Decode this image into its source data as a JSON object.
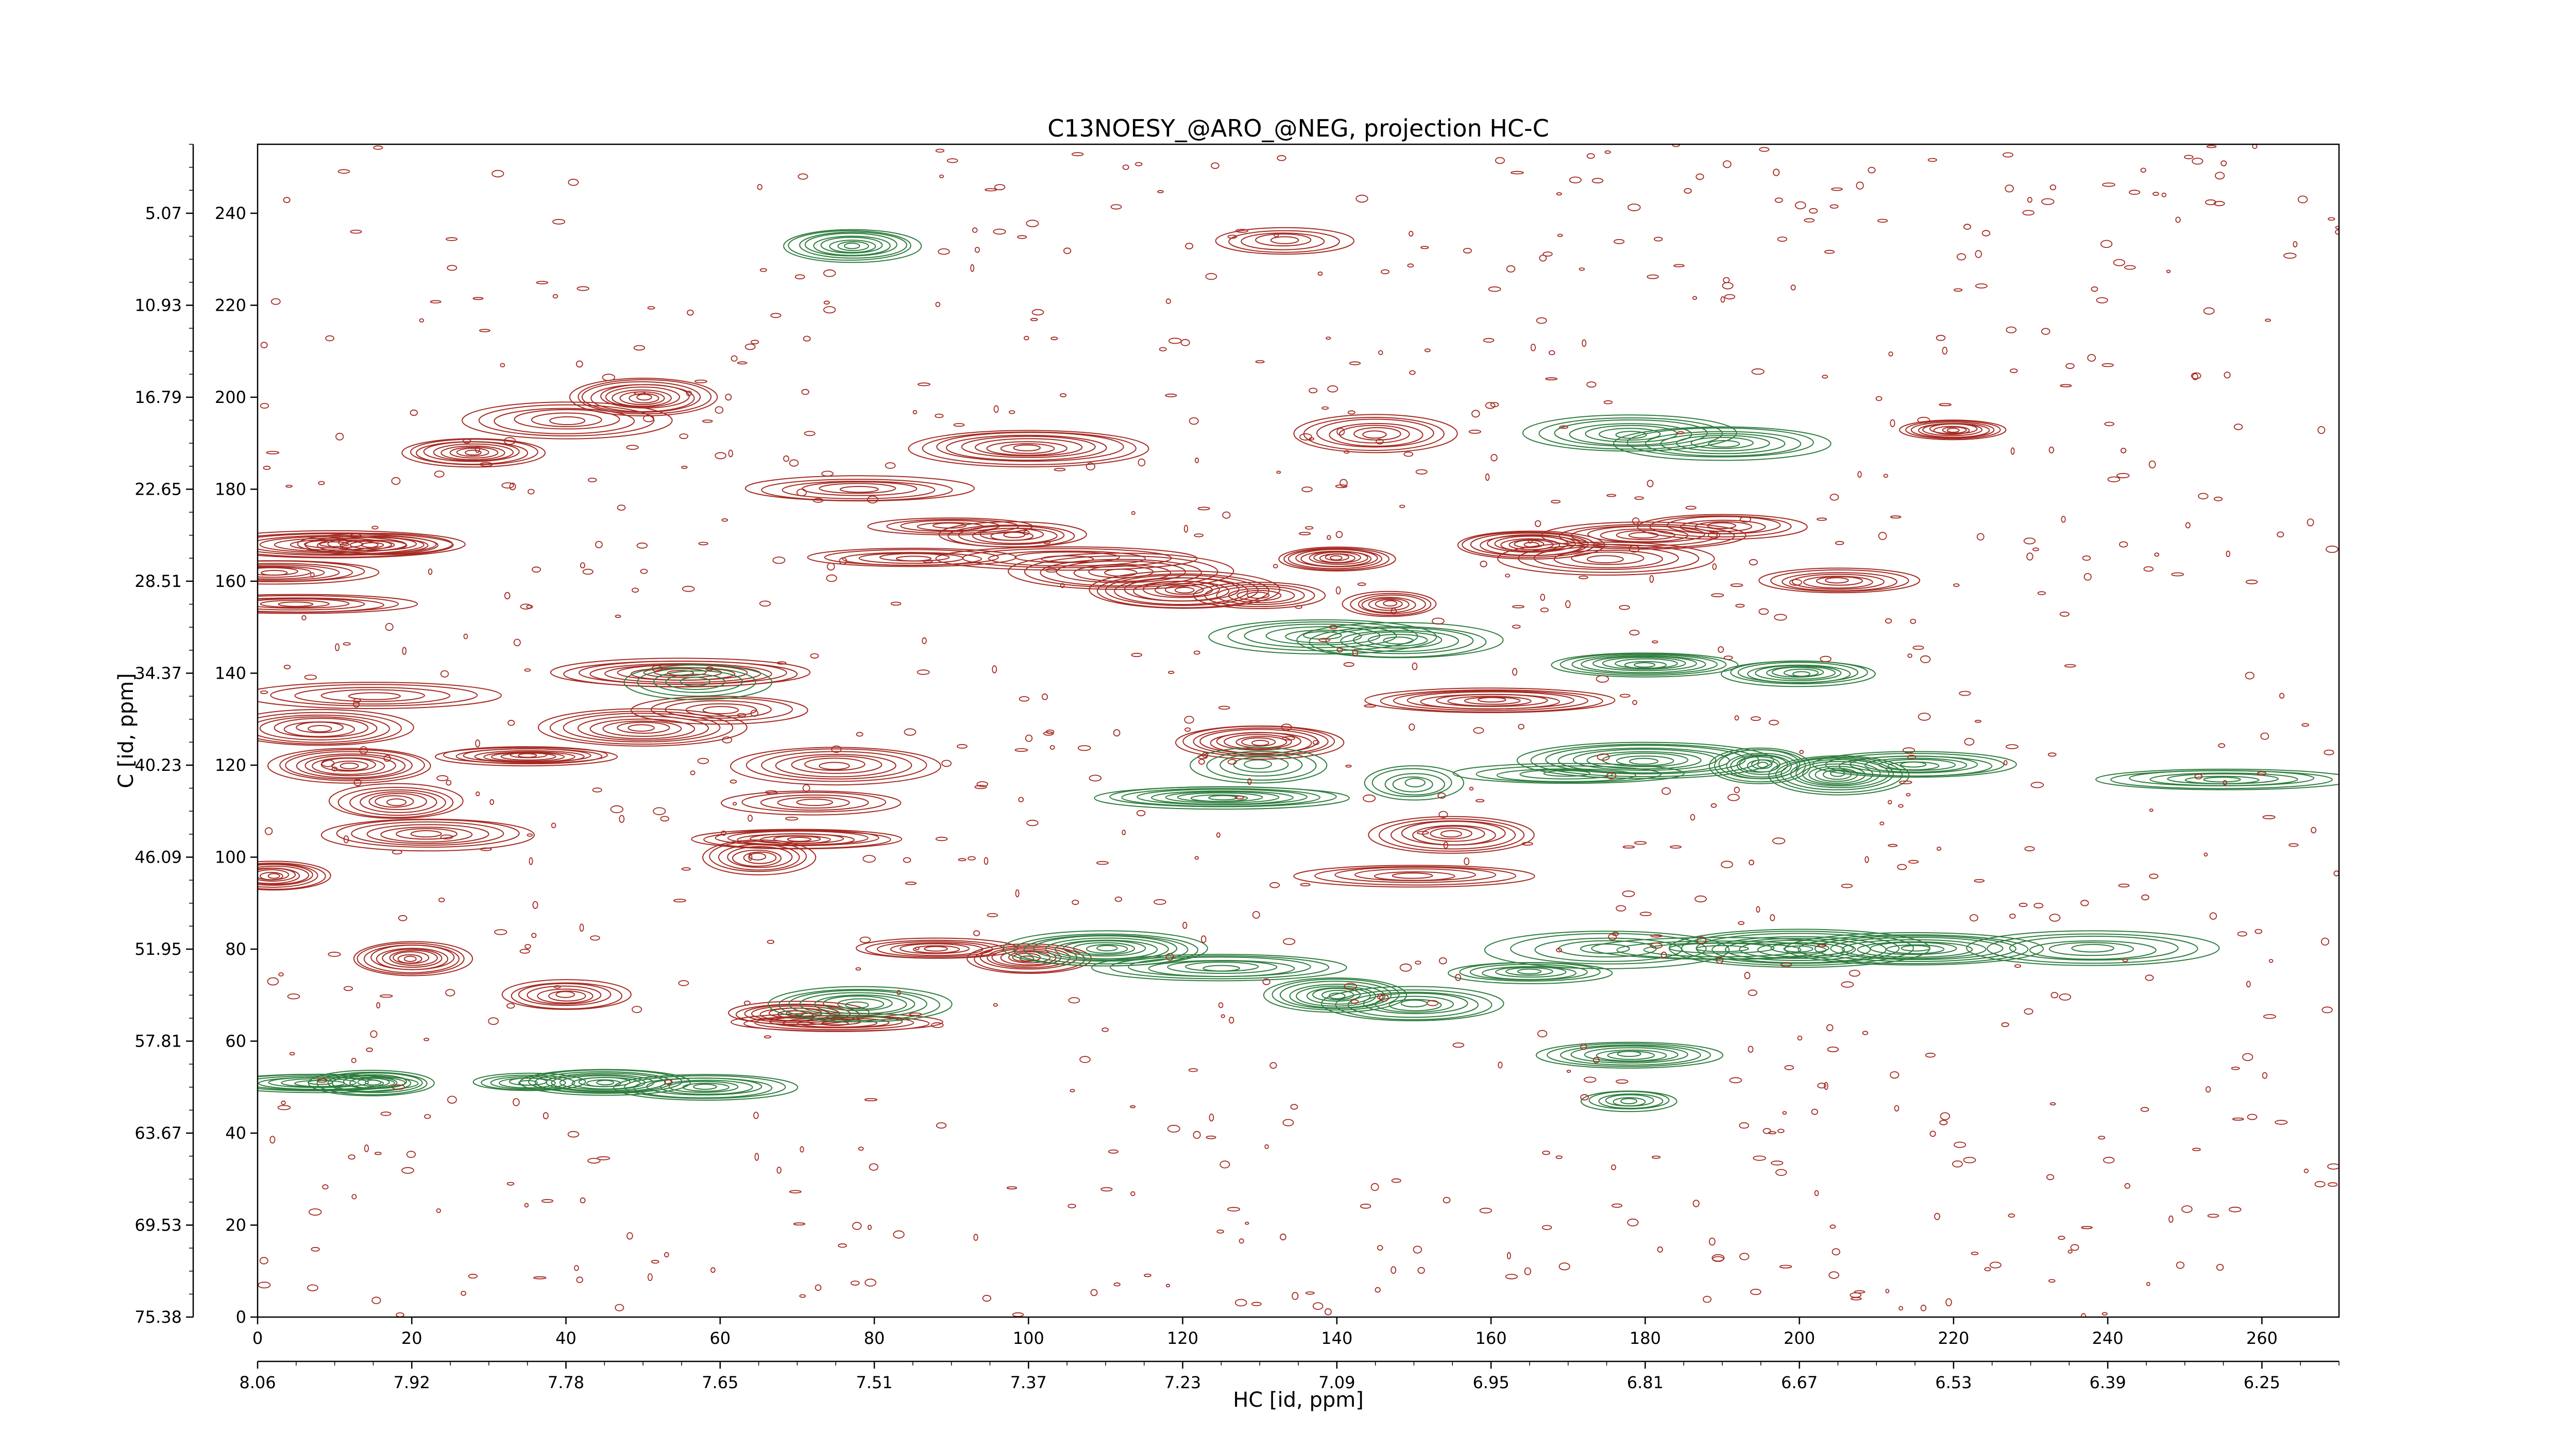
{
  "chart_data": {
    "type": "contour",
    "title": "C13NOESY_@ARO_@NEG, projection HC-C",
    "xlabel": "HC [id, ppm]",
    "ylabel": "C [id, ppm]",
    "x_index_range": [
      0,
      270
    ],
    "y_index_range": [
      0,
      255
    ],
    "x_index_ticks": [
      "0",
      "20",
      "40",
      "60",
      "80",
      "100",
      "120",
      "140",
      "160",
      "180",
      "200",
      "220",
      "240",
      "260"
    ],
    "x_ppm_ticks": [
      "8.06",
      "7.92",
      "7.78",
      "7.65",
      "7.51",
      "7.37",
      "7.23",
      "7.09",
      "6.95",
      "6.81",
      "6.67",
      "6.53",
      "6.39",
      "6.25"
    ],
    "y_index_ticks": [
      "240",
      "220",
      "200",
      "180",
      "160",
      "140",
      "120",
      "100",
      "80",
      "60",
      "40",
      "20",
      "0"
    ],
    "y_ppm_ticks": [
      "5.07",
      "10.93",
      "16.79",
      "22.65",
      "28.51",
      "34.37",
      "40.23",
      "46.09",
      "51.95",
      "57.81",
      "63.67",
      "69.53",
      "75.38"
    ],
    "series": [
      {
        "sign": "positive",
        "color": "#a52a22",
        "peaks": [
          {
            "x": 2,
            "y": 162
          },
          {
            "x": 5,
            "y": 155
          },
          {
            "x": 10,
            "y": 168
          },
          {
            "x": 15,
            "y": 135
          },
          {
            "x": 8,
            "y": 128
          },
          {
            "x": 12,
            "y": 120
          },
          {
            "x": 18,
            "y": 112
          },
          {
            "x": 22,
            "y": 105
          },
          {
            "x": 2,
            "y": 96
          },
          {
            "x": 15,
            "y": 168
          },
          {
            "x": 28,
            "y": 188
          },
          {
            "x": 50,
            "y": 200
          },
          {
            "x": 40,
            "y": 195
          },
          {
            "x": 55,
            "y": 140
          },
          {
            "x": 60,
            "y": 132
          },
          {
            "x": 65,
            "y": 100
          },
          {
            "x": 75,
            "y": 120
          },
          {
            "x": 72,
            "y": 112
          },
          {
            "x": 70,
            "y": 104
          },
          {
            "x": 78,
            "y": 180
          },
          {
            "x": 85,
            "y": 165
          },
          {
            "x": 90,
            "y": 172
          },
          {
            "x": 98,
            "y": 170
          },
          {
            "x": 105,
            "y": 165
          },
          {
            "x": 112,
            "y": 162
          },
          {
            "x": 120,
            "y": 158
          },
          {
            "x": 130,
            "y": 157
          },
          {
            "x": 133,
            "y": 234
          },
          {
            "x": 147,
            "y": 155
          },
          {
            "x": 140,
            "y": 165
          },
          {
            "x": 150,
            "y": 96
          },
          {
            "x": 155,
            "y": 105
          },
          {
            "x": 160,
            "y": 134
          },
          {
            "x": 165,
            "y": 168
          },
          {
            "x": 175,
            "y": 165
          },
          {
            "x": 180,
            "y": 170
          },
          {
            "x": 190,
            "y": 172
          },
          {
            "x": 205,
            "y": 160
          },
          {
            "x": 220,
            "y": 193
          },
          {
            "x": 100,
            "y": 189
          },
          {
            "x": 88,
            "y": 80
          },
          {
            "x": 70,
            "y": 66
          },
          {
            "x": 75,
            "y": 64
          },
          {
            "x": 100,
            "y": 78
          },
          {
            "x": 130,
            "y": 125
          },
          {
            "x": 145,
            "y": 192
          },
          {
            "x": 40,
            "y": 70
          },
          {
            "x": 20,
            "y": 78
          },
          {
            "x": 50,
            "y": 128
          },
          {
            "x": 35,
            "y": 122
          }
        ]
      },
      {
        "sign": "negative",
        "color": "#2e7d3e",
        "peaks": [
          {
            "x": 8,
            "y": 51
          },
          {
            "x": 15,
            "y": 51
          },
          {
            "x": 35,
            "y": 51
          },
          {
            "x": 45,
            "y": 51
          },
          {
            "x": 58,
            "y": 50
          },
          {
            "x": 78,
            "y": 68
          },
          {
            "x": 110,
            "y": 80
          },
          {
            "x": 125,
            "y": 76
          },
          {
            "x": 140,
            "y": 70
          },
          {
            "x": 150,
            "y": 68
          },
          {
            "x": 165,
            "y": 75
          },
          {
            "x": 175,
            "y": 80
          },
          {
            "x": 190,
            "y": 80
          },
          {
            "x": 200,
            "y": 80
          },
          {
            "x": 215,
            "y": 80
          },
          {
            "x": 238,
            "y": 80
          },
          {
            "x": 125,
            "y": 113
          },
          {
            "x": 130,
            "y": 120
          },
          {
            "x": 150,
            "y": 116
          },
          {
            "x": 170,
            "y": 118
          },
          {
            "x": 180,
            "y": 121
          },
          {
            "x": 195,
            "y": 120
          },
          {
            "x": 205,
            "y": 118
          },
          {
            "x": 215,
            "y": 120
          },
          {
            "x": 255,
            "y": 117
          },
          {
            "x": 178,
            "y": 192
          },
          {
            "x": 190,
            "y": 190
          },
          {
            "x": 138,
            "y": 148
          },
          {
            "x": 148,
            "y": 147
          },
          {
            "x": 77,
            "y": 233
          },
          {
            "x": 178,
            "y": 57
          },
          {
            "x": 178,
            "y": 47
          },
          {
            "x": 180,
            "y": 142
          },
          {
            "x": 200,
            "y": 140
          },
          {
            "x": 57,
            "y": 138
          }
        ]
      }
    ]
  }
}
